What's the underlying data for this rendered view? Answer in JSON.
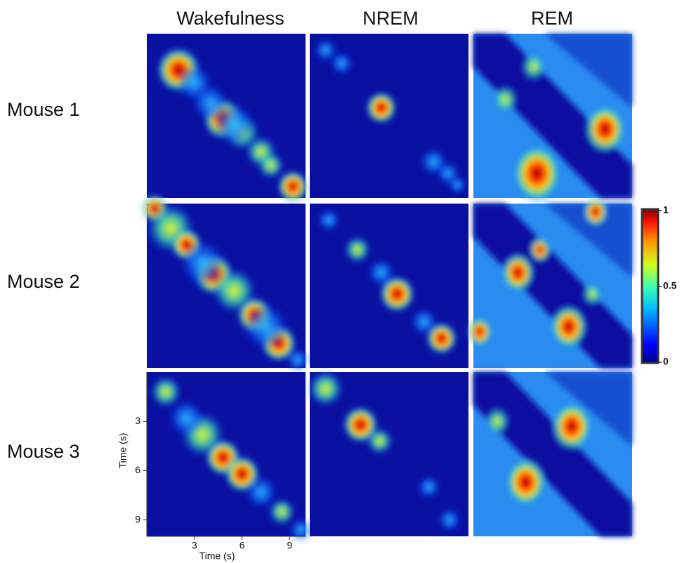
{
  "columns": [
    "Wakefulness",
    "NREM",
    "REM"
  ],
  "rows": [
    "Mouse 1",
    "Mouse 2",
    "Mouse 3"
  ],
  "colorbar": {
    "ticks": [
      0,
      0.5,
      1
    ],
    "range": [
      0,
      1
    ]
  },
  "axes": {
    "xlabel": "Time (s)",
    "ylabel": "Time (s)",
    "xlim": [
      0,
      10
    ],
    "ylim": [
      0,
      10
    ],
    "xticks": [
      3,
      6,
      9
    ],
    "yticks": [
      3,
      6,
      9
    ]
  }
}
